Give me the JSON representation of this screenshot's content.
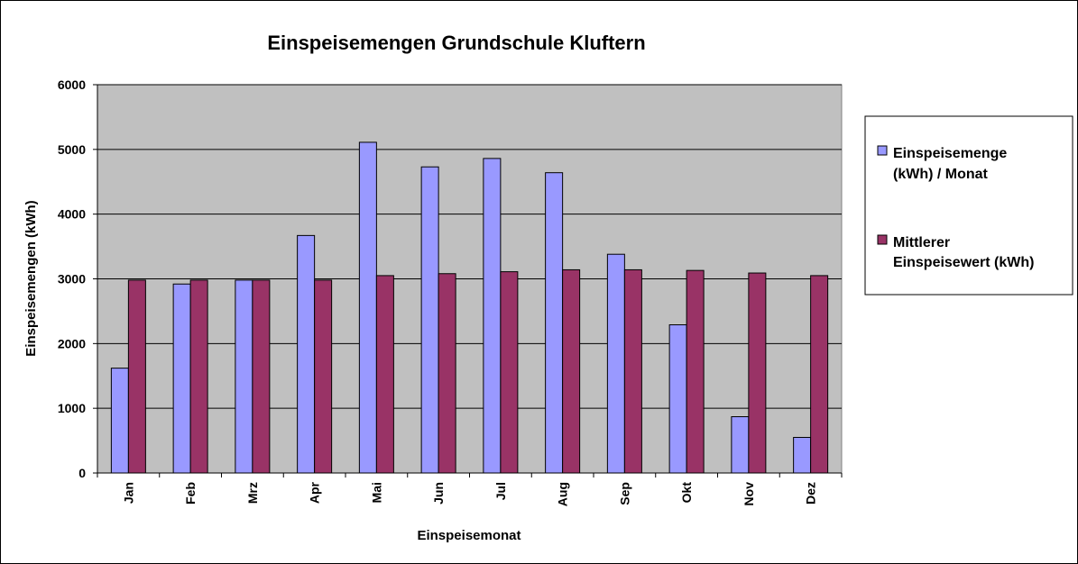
{
  "chart_data": {
    "type": "bar",
    "title": "Einspeisemengen Grundschule Kluftern",
    "xlabel": "Einspeisemonat",
    "ylabel": "Einspeisemengen (kWh)",
    "ylim": [
      0,
      6000
    ],
    "yticks": [
      0,
      1000,
      2000,
      3000,
      4000,
      5000,
      6000
    ],
    "grid": true,
    "legend_position": "right",
    "categories": [
      "Jan",
      "Feb",
      "Mrz",
      "Apr",
      "Mai",
      "Jun",
      "Jul",
      "Aug",
      "Sep",
      "Okt",
      "Nov",
      "Dez"
    ],
    "series": [
      {
        "legend": [
          "Einspeisemenge",
          "(kWh) / Monat"
        ],
        "color": "#9999FF",
        "values": [
          1620,
          2920,
          2980,
          3670,
          5110,
          4730,
          4860,
          4640,
          3380,
          2290,
          870,
          550
        ]
      },
      {
        "legend": [
          "Mittlerer",
          "Einspeisewert (kWh)"
        ],
        "color": "#993366",
        "values": [
          2980,
          2980,
          2980,
          2980,
          3050,
          3080,
          3110,
          3140,
          3140,
          3130,
          3090,
          3050
        ]
      }
    ],
    "plot_background": "#C0C0C0",
    "grid_color": "#000000"
  }
}
